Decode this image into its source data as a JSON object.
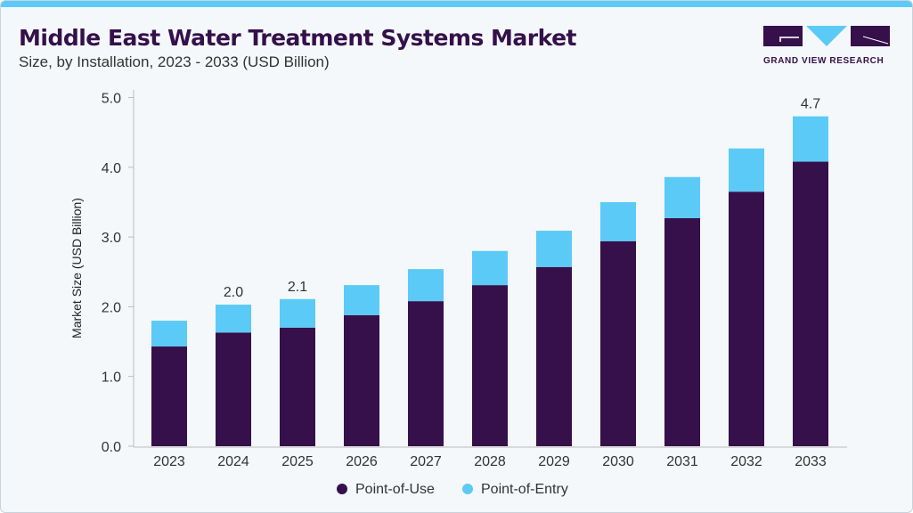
{
  "header": {
    "title": "Middle East Water Treatment Systems Market",
    "subtitle": "Size, by Installation, 2023 - 2033 (USD Billion)"
  },
  "logo": {
    "text": "GRAND VIEW RESEARCH"
  },
  "colors": {
    "point_of_use": "#35104a",
    "point_of_entry": "#5ccaf6",
    "accent": "#5ccaf6"
  },
  "chart_data": {
    "type": "bar",
    "stacked": true,
    "title": "Middle East Water Treatment Systems Market",
    "subtitle": "Size, by Installation, 2023 - 2033 (USD Billion)",
    "xlabel": "",
    "ylabel": "Market Size (USD Billion)",
    "ylim": [
      0,
      5
    ],
    "yticks": [
      "0.0",
      "1.0",
      "2.0",
      "3.0",
      "4.0",
      "5.0"
    ],
    "categories": [
      "2023",
      "2024",
      "2025",
      "2026",
      "2027",
      "2028",
      "2029",
      "2030",
      "2031",
      "2032",
      "2033"
    ],
    "series": [
      {
        "name": "Point-of-Use",
        "values": [
          1.43,
          1.63,
          1.7,
          1.88,
          2.08,
          2.31,
          2.57,
          2.94,
          3.27,
          3.65,
          4.08
        ]
      },
      {
        "name": "Point-of-Entry",
        "values": [
          0.37,
          0.4,
          0.41,
          0.43,
          0.46,
          0.49,
          0.52,
          0.56,
          0.59,
          0.62,
          0.65
        ]
      }
    ],
    "data_labels": {
      "2024": "2.0",
      "2025": "2.1",
      "2033": "4.7"
    },
    "legend": "bottom",
    "grid": false
  }
}
